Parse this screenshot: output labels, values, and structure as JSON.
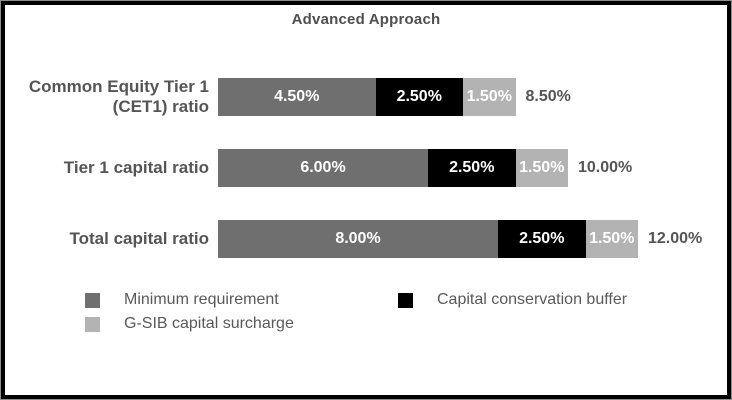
{
  "title": "Advanced Approach",
  "chart_data": {
    "type": "bar",
    "orientation": "horizontal",
    "stacked": true,
    "title": "Advanced Approach",
    "categories": [
      "Common Equity Tier 1 (CET1) ratio",
      "Tier 1 capital ratio",
      "Total capital ratio"
    ],
    "series": [
      {
        "name": "Minimum requirement",
        "color": "#6f6f6f",
        "values": [
          4.5,
          6.0,
          8.0
        ]
      },
      {
        "name": "Capital conservation buffer",
        "color": "#000000",
        "values": [
          2.5,
          2.5,
          2.5
        ]
      },
      {
        "name": "G-SIB capital surcharge",
        "color": "#b3b3b3",
        "values": [
          1.5,
          1.5,
          1.5
        ]
      }
    ],
    "segment_labels": [
      [
        "4.50%",
        "2.50%",
        "1.50%"
      ],
      [
        "6.00%",
        "2.50%",
        "1.50%"
      ],
      [
        "8.00%",
        "2.50%",
        "1.50%"
      ]
    ],
    "totals": [
      "8.50%",
      "10.00%",
      "12.00%"
    ],
    "value_axis_max": 12,
    "grid": false,
    "legend_position": "bottom"
  },
  "legend": {
    "items": [
      {
        "label": "Minimum requirement",
        "color": "#6f6f6f"
      },
      {
        "label": "Capital conservation buffer",
        "color": "#000000"
      },
      {
        "label": "G-SIB capital surcharge",
        "color": "#b3b3b3"
      }
    ]
  },
  "colors": {
    "text": "#555555",
    "background": "#ffffff",
    "border": "#000000"
  }
}
